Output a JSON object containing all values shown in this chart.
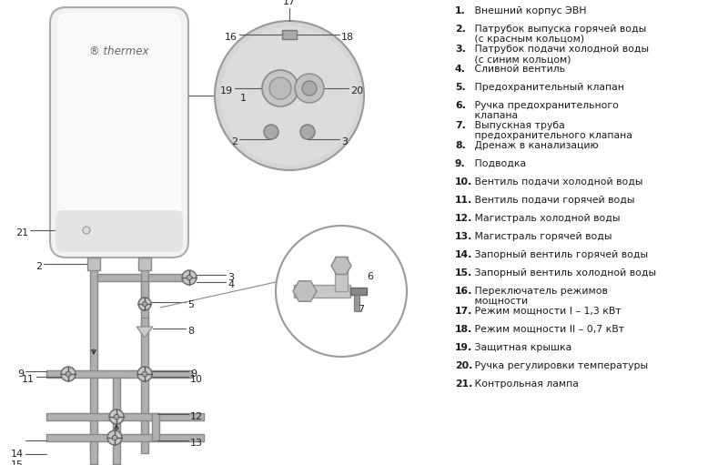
{
  "bg_color": "#ffffff",
  "fig_width": 8.0,
  "fig_height": 5.11,
  "legend_items": [
    {
      "num": "1.",
      "bold": true,
      "text": " Внешний корпус ЭВН"
    },
    {
      "num": "2.",
      "bold": true,
      "text": " Патрубок выпуска горячей воды",
      "extra": " (с красным кольцом)"
    },
    {
      "num": "3.",
      "bold": true,
      "text": " Патрубок подачи холодной воды",
      "extra": " (с синим кольцом)"
    },
    {
      "num": "4.",
      "bold": true,
      "text": " Сливной вентиль"
    },
    {
      "num": "5.",
      "bold": true,
      "text": " Предохранительный клапан"
    },
    {
      "num": "6.",
      "bold": true,
      "text": " Ручка предохранительного",
      "extra": " клапана"
    },
    {
      "num": "7.",
      "bold": true,
      "text": " Выпускная труба",
      "extra": " предохранительного клапана"
    },
    {
      "num": "8.",
      "bold": true,
      "text": " Дренаж в канализацию"
    },
    {
      "num": "9.",
      "bold": true,
      "text": " Подводка"
    },
    {
      "num": "10.",
      "bold": true,
      "text": " Вентиль подачи холодной воды"
    },
    {
      "num": "11.",
      "bold": true,
      "text": " Вентиль подачи горячей воды"
    },
    {
      "num": "12.",
      "bold": true,
      "text": " Магистраль холодной воды"
    },
    {
      "num": "13.",
      "bold": true,
      "text": " Магистраль горячей воды"
    },
    {
      "num": "14.",
      "bold": true,
      "text": " Запорный вентиль горячей воды"
    },
    {
      "num": "15.",
      "bold": true,
      "text": " Запорный вентиль холодной воды"
    },
    {
      "num": "16.",
      "bold": true,
      "text": " Переключатель режимов",
      "extra": " мощности"
    },
    {
      "num": "17.",
      "bold": true,
      "text": " Режим мощности I – 1,3 кВт"
    },
    {
      "num": "18.",
      "bold": true,
      "text": " Режим мощности II – 0,7 кВт"
    },
    {
      "num": "19.",
      "bold": true,
      "text": " Защитная крышка"
    },
    {
      "num": "20.",
      "bold": true,
      "text": " Ручка регулировки температуры"
    },
    {
      "num": "21.",
      "bold": true,
      "text": " Контрольная лампа"
    }
  ]
}
